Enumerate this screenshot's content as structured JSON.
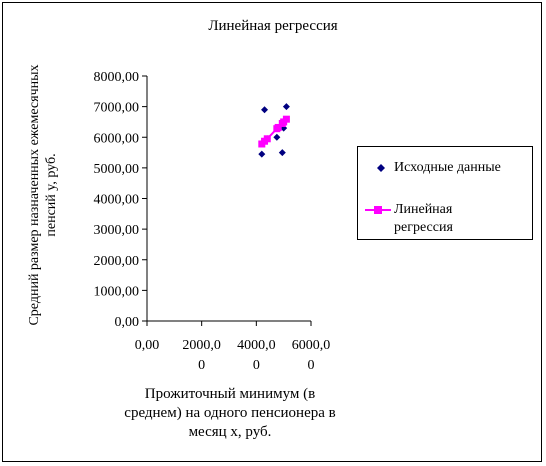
{
  "chart_data": {
    "type": "scatter",
    "title": "Линейная регрессия",
    "xlabel": "Прожиточный минимум (в среднем) на одного пенсионера в месяц x, руб.",
    "ylabel": "Средний размер назначенных ежемесячных пенсий y, руб.",
    "xlim": [
      0,
      6000
    ],
    "ylim": [
      0,
      8000
    ],
    "x_ticks": [
      0,
      2000,
      4000,
      6000
    ],
    "y_ticks": [
      0,
      1000,
      2000,
      3000,
      4000,
      5000,
      6000,
      7000,
      8000
    ],
    "x_tick_labels": [
      [
        "0,00"
      ],
      [
        "2000,0",
        "0"
      ],
      [
        "4000,0",
        "0"
      ],
      [
        "6000,0",
        "0"
      ]
    ],
    "y_tick_labels": [
      "0,00",
      "1000,00",
      "2000,00",
      "3000,00",
      "4000,00",
      "5000,00",
      "6000,00",
      "7000,00",
      "8000,00"
    ],
    "legend_position": "right",
    "grid": false,
    "series": [
      {
        "name": "Исходные данные",
        "marker": "diamond",
        "color": "#000080",
        "points": [
          [
            4200,
            5450
          ],
          [
            4300,
            6900
          ],
          [
            4750,
            6000
          ],
          [
            4950,
            5500
          ],
          [
            5000,
            6300
          ],
          [
            5100,
            7000
          ],
          [
            4800,
            6300
          ],
          [
            4400,
            5950
          ]
        ]
      },
      {
        "name": "Линейная регрессия",
        "marker": "square",
        "color": "#ff00ff",
        "line": true,
        "points": [
          [
            4200,
            5780
          ],
          [
            4300,
            5870
          ],
          [
            4400,
            5950
          ],
          [
            4750,
            6280
          ],
          [
            4800,
            6320
          ],
          [
            4950,
            6450
          ],
          [
            5000,
            6500
          ],
          [
            5100,
            6590
          ]
        ]
      }
    ]
  },
  "legend": {
    "items": [
      {
        "lines": [
          "Исходные данные"
        ]
      },
      {
        "lines": [
          "Линейная",
          "регрессия"
        ]
      }
    ]
  }
}
